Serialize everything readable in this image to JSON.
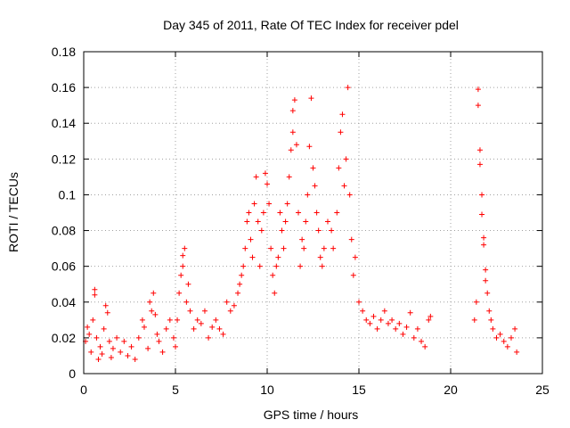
{
  "chart_data": {
    "type": "scatter",
    "title": "Day 345 of 2011, Rate Of TEC Index for receiver pdel",
    "xlabel": "GPS time / hours",
    "ylabel": "ROTI / TECUs",
    "xlim": [
      0,
      25
    ],
    "ylim": [
      0,
      0.18
    ],
    "x_ticks": [
      {
        "value": 0,
        "label": "0"
      },
      {
        "value": 5,
        "label": "5"
      },
      {
        "value": 10,
        "label": "10"
      },
      {
        "value": 15,
        "label": "15"
      },
      {
        "value": 20,
        "label": "20"
      },
      {
        "value": 25,
        "label": "25"
      }
    ],
    "y_ticks": [
      {
        "value": 0,
        "label": "0"
      },
      {
        "value": 0.02,
        "label": "0.02"
      },
      {
        "value": 0.04,
        "label": "0.04"
      },
      {
        "value": 0.06,
        "label": "0.06"
      },
      {
        "value": 0.08,
        "label": "0.08"
      },
      {
        "value": 0.1,
        "label": "0.1"
      },
      {
        "value": 0.12,
        "label": "0.12"
      },
      {
        "value": 0.14,
        "label": "0.14"
      },
      {
        "value": 0.16,
        "label": "0.16"
      },
      {
        "value": 0.18,
        "label": "0.18"
      }
    ],
    "grid": true,
    "marker": "+",
    "marker_color": "#ff0000",
    "series": [
      {
        "name": "ROTI",
        "points": [
          [
            0.1,
            0.018
          ],
          [
            0.2,
            0.026
          ],
          [
            0.3,
            0.022
          ],
          [
            0.4,
            0.012
          ],
          [
            0.5,
            0.03
          ],
          [
            0.6,
            0.047
          ],
          [
            0.6,
            0.044
          ],
          [
            0.7,
            0.02
          ],
          [
            0.8,
            0.008
          ],
          [
            0.9,
            0.015
          ],
          [
            1.0,
            0.011
          ],
          [
            1.1,
            0.025
          ],
          [
            1.2,
            0.038
          ],
          [
            1.3,
            0.034
          ],
          [
            1.4,
            0.018
          ],
          [
            1.5,
            0.009
          ],
          [
            1.6,
            0.014
          ],
          [
            1.8,
            0.02
          ],
          [
            2.0,
            0.012
          ],
          [
            2.2,
            0.018
          ],
          [
            2.4,
            0.01
          ],
          [
            2.6,
            0.015
          ],
          [
            2.8,
            0.008
          ],
          [
            3.0,
            0.02
          ],
          [
            3.2,
            0.03
          ],
          [
            3.3,
            0.026
          ],
          [
            3.5,
            0.014
          ],
          [
            3.6,
            0.04
          ],
          [
            3.7,
            0.035
          ],
          [
            3.8,
            0.045
          ],
          [
            3.9,
            0.033
          ],
          [
            4.0,
            0.022
          ],
          [
            4.1,
            0.018
          ],
          [
            4.3,
            0.012
          ],
          [
            4.5,
            0.025
          ],
          [
            4.7,
            0.03
          ],
          [
            4.9,
            0.02
          ],
          [
            5.0,
            0.015
          ],
          [
            5.1,
            0.03
          ],
          [
            5.2,
            0.045
          ],
          [
            5.3,
            0.055
          ],
          [
            5.4,
            0.06
          ],
          [
            5.4,
            0.066
          ],
          [
            5.5,
            0.07
          ],
          [
            5.6,
            0.04
          ],
          [
            5.7,
            0.05
          ],
          [
            5.8,
            0.035
          ],
          [
            6.0,
            0.025
          ],
          [
            6.2,
            0.03
          ],
          [
            6.4,
            0.028
          ],
          [
            6.6,
            0.035
          ],
          [
            6.8,
            0.02
          ],
          [
            7.0,
            0.026
          ],
          [
            7.2,
            0.03
          ],
          [
            7.4,
            0.025
          ],
          [
            7.6,
            0.022
          ],
          [
            7.8,
            0.04
          ],
          [
            8.0,
            0.035
          ],
          [
            8.2,
            0.038
          ],
          [
            8.4,
            0.045
          ],
          [
            8.5,
            0.05
          ],
          [
            8.6,
            0.055
          ],
          [
            8.7,
            0.06
          ],
          [
            8.8,
            0.07
          ],
          [
            8.9,
            0.085
          ],
          [
            9.0,
            0.09
          ],
          [
            9.1,
            0.075
          ],
          [
            9.2,
            0.065
          ],
          [
            9.3,
            0.095
          ],
          [
            9.4,
            0.11
          ],
          [
            9.5,
            0.085
          ],
          [
            9.6,
            0.06
          ],
          [
            9.7,
            0.08
          ],
          [
            9.8,
            0.09
          ],
          [
            9.9,
            0.112
          ],
          [
            10.0,
            0.106
          ],
          [
            10.1,
            0.095
          ],
          [
            10.2,
            0.07
          ],
          [
            10.3,
            0.055
          ],
          [
            10.4,
            0.045
          ],
          [
            10.5,
            0.06
          ],
          [
            10.6,
            0.065
          ],
          [
            10.7,
            0.09
          ],
          [
            10.8,
            0.08
          ],
          [
            10.9,
            0.07
          ],
          [
            11.0,
            0.085
          ],
          [
            11.1,
            0.095
          ],
          [
            11.2,
            0.11
          ],
          [
            11.3,
            0.125
          ],
          [
            11.4,
            0.135
          ],
          [
            11.4,
            0.147
          ],
          [
            11.5,
            0.153
          ],
          [
            11.6,
            0.128
          ],
          [
            11.7,
            0.09
          ],
          [
            11.8,
            0.06
          ],
          [
            11.9,
            0.075
          ],
          [
            12.0,
            0.07
          ],
          [
            12.1,
            0.085
          ],
          [
            12.2,
            0.1
          ],
          [
            12.3,
            0.127
          ],
          [
            12.4,
            0.154
          ],
          [
            12.5,
            0.115
          ],
          [
            12.6,
            0.105
          ],
          [
            12.7,
            0.09
          ],
          [
            12.8,
            0.08
          ],
          [
            12.9,
            0.065
          ],
          [
            13.0,
            0.06
          ],
          [
            13.1,
            0.07
          ],
          [
            13.3,
            0.085
          ],
          [
            13.5,
            0.08
          ],
          [
            13.6,
            0.07
          ],
          [
            13.8,
            0.09
          ],
          [
            13.9,
            0.115
          ],
          [
            14.0,
            0.135
          ],
          [
            14.1,
            0.145
          ],
          [
            14.2,
            0.105
          ],
          [
            14.3,
            0.12
          ],
          [
            14.4,
            0.16
          ],
          [
            14.5,
            0.1
          ],
          [
            14.6,
            0.075
          ],
          [
            14.7,
            0.055
          ],
          [
            14.8,
            0.065
          ],
          [
            15.0,
            0.04
          ],
          [
            15.2,
            0.035
          ],
          [
            15.4,
            0.03
          ],
          [
            15.6,
            0.028
          ],
          [
            15.8,
            0.032
          ],
          [
            16.0,
            0.025
          ],
          [
            16.2,
            0.03
          ],
          [
            16.4,
            0.035
          ],
          [
            16.6,
            0.028
          ],
          [
            16.8,
            0.03
          ],
          [
            17.0,
            0.025
          ],
          [
            17.2,
            0.028
          ],
          [
            17.4,
            0.022
          ],
          [
            17.6,
            0.026
          ],
          [
            17.8,
            0.034
          ],
          [
            18.0,
            0.02
          ],
          [
            18.2,
            0.025
          ],
          [
            18.4,
            0.018
          ],
          [
            18.6,
            0.015
          ],
          [
            18.8,
            0.03
          ],
          [
            18.9,
            0.032
          ],
          [
            21.3,
            0.03
          ],
          [
            21.4,
            0.04
          ],
          [
            21.5,
            0.15
          ],
          [
            21.5,
            0.159
          ],
          [
            21.6,
            0.125
          ],
          [
            21.6,
            0.117
          ],
          [
            21.7,
            0.1
          ],
          [
            21.7,
            0.089
          ],
          [
            21.8,
            0.076
          ],
          [
            21.8,
            0.072
          ],
          [
            21.9,
            0.058
          ],
          [
            21.9,
            0.052
          ],
          [
            22.0,
            0.045
          ],
          [
            22.1,
            0.035
          ],
          [
            22.2,
            0.03
          ],
          [
            22.3,
            0.025
          ],
          [
            22.5,
            0.02
          ],
          [
            22.7,
            0.022
          ],
          [
            22.9,
            0.018
          ],
          [
            23.1,
            0.015
          ],
          [
            23.3,
            0.02
          ],
          [
            23.5,
            0.025
          ],
          [
            23.6,
            0.012
          ]
        ]
      }
    ]
  }
}
